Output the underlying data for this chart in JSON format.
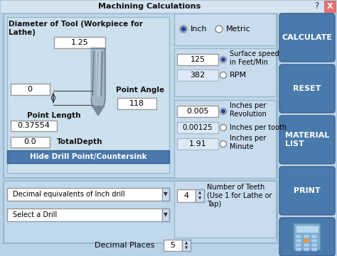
{
  "title": "Machining Calculations",
  "bg_color": "#b8d2e8",
  "panel_bg": "#c8dff0",
  "button_color": "#4a7aab",
  "input_bg": "white",
  "title_bar_bg": "#d8e8f4",
  "buttons": [
    "CALCULATE",
    "RESET",
    "MATERIAL\nLIST",
    "PRINT"
  ],
  "left_panel_title": "Diameter of Tool (Workpiece for\nLathe)",
  "diameter_value": "1.25",
  "offset_value": "0",
  "point_angle_label": "Point Angle",
  "point_angle_value": "118",
  "point_length_label": "Point Length",
  "point_length_value": "0.37554",
  "total_depth_value": "0.0",
  "total_depth_label": "TotalDepth",
  "hide_btn_text": "Hide Drill Point/Countersink",
  "dropdown1": "Decimal equivalents of Inch drill",
  "dropdown2": "Select a Drill",
  "inch_label": "Inch",
  "metric_label": "Metric",
  "surface_speed_value": "125",
  "surface_speed_label": "Surface speed\nin Feet/Min",
  "rpm_value": "382",
  "rpm_label": "RPM",
  "ipr_value": "0.005",
  "ipr_label": "Inches per\nRevolution",
  "ipt_value": "0.00125",
  "ipt_label": "Inches per tooth",
  "ipm_value": "1.91",
  "ipm_label": "Inches per\nMinute",
  "teeth_value": "4",
  "teeth_label": "Number of Teeth\n(Use 1 for Lathe or\nTap)",
  "decimal_places_label": "Decimal Places",
  "decimal_places_value": "5",
  "question_mark": "?",
  "close_x": "X"
}
